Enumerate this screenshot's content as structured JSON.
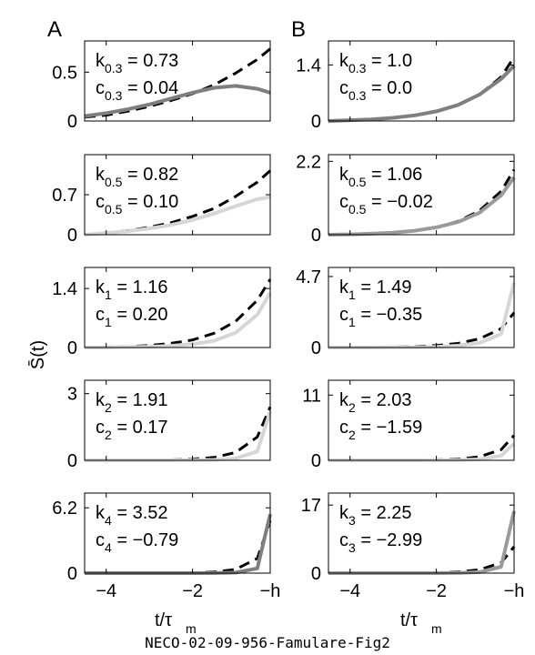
{
  "figure": {
    "caption": "NECO-02-09-956-Famulare-Fig2",
    "ylabel": "S̄(t)",
    "xlabel_main": "t/τ",
    "xlabel_sub": "m",
    "xticklabels": [
      "−4",
      "−2",
      "−h"
    ],
    "panel_labels": [
      "A",
      "B"
    ]
  },
  "colors": {
    "fit_line": "#000000",
    "data_dark": "#7f7f7f",
    "data_mid": "#9a9a9a",
    "data_light": "#d6d6d6"
  },
  "chart_data": [
    {
      "type": "line",
      "panel": "A",
      "row": 1,
      "ylim": [
        0,
        0.82
      ],
      "ytick": "0.5",
      "ytick_value": 0.5,
      "k_sub": "0.3",
      "k_value": "0.73",
      "c_sub": "0.3",
      "c_value": "0.04",
      "xlim": [
        -4.5,
        -0.2
      ],
      "xtick_values": [
        -4,
        -2,
        -0.2
      ],
      "series": [
        {
          "style": "dashed",
          "color": "#000000",
          "x": [
            -4.5,
            -4,
            -3.5,
            -3,
            -2.5,
            -2,
            -1.5,
            -1,
            -0.5,
            -0.2
          ],
          "y": [
            0.04,
            0.06,
            0.1,
            0.15,
            0.21,
            0.28,
            0.37,
            0.49,
            0.63,
            0.74
          ]
        },
        {
          "style": "solid",
          "color": "#7f7f7f",
          "x": [
            -4.5,
            -4,
            -3.5,
            -3,
            -2.5,
            -2,
            -1.5,
            -1,
            -0.5,
            -0.2
          ],
          "y": [
            0.05,
            0.08,
            0.12,
            0.17,
            0.23,
            0.29,
            0.34,
            0.36,
            0.33,
            0.29
          ]
        }
      ]
    },
    {
      "type": "line",
      "panel": "B",
      "row": 1,
      "ylim": [
        0,
        2.0
      ],
      "ytick": "1.4",
      "ytick_value": 1.4,
      "k_sub": "0.3",
      "k_value": "1.0",
      "c_sub": "0.3",
      "c_value": "0.0",
      "xlim": [
        -4.5,
        -0.2
      ],
      "xtick_values": [
        -4,
        -2,
        -0.2
      ],
      "series": [
        {
          "style": "dashed",
          "color": "#000000",
          "x": [
            -4.5,
            -4,
            -3.5,
            -3,
            -2.5,
            -2,
            -1.5,
            -1,
            -0.5,
            -0.2
          ],
          "y": [
            0.0,
            0.02,
            0.04,
            0.08,
            0.14,
            0.24,
            0.4,
            0.66,
            1.1,
            1.6
          ]
        },
        {
          "style": "solid",
          "color": "#7f7f7f",
          "x": [
            -4.5,
            -4,
            -3.5,
            -3,
            -2.5,
            -2,
            -1.5,
            -1,
            -0.5,
            -0.2
          ],
          "y": [
            0.0,
            0.02,
            0.04,
            0.08,
            0.14,
            0.24,
            0.4,
            0.66,
            1.05,
            1.38
          ]
        }
      ]
    },
    {
      "type": "line",
      "panel": "A",
      "row": 2,
      "ylim": [
        0,
        1.4
      ],
      "ytick": "0.7",
      "ytick_value": 0.7,
      "k_sub": "0.5",
      "k_value": "0.82",
      "c_sub": "0.5",
      "c_value": "0.10",
      "xlim": [
        -4.5,
        -0.2
      ],
      "xtick_values": [
        -4,
        -2,
        -0.2
      ],
      "series": [
        {
          "style": "dashed",
          "color": "#000000",
          "x": [
            -4.5,
            -4,
            -3.5,
            -3,
            -2.5,
            -2,
            -1.5,
            -1,
            -0.5,
            -0.2
          ],
          "y": [
            0.0,
            0.03,
            0.07,
            0.13,
            0.21,
            0.32,
            0.46,
            0.67,
            0.92,
            1.12
          ]
        },
        {
          "style": "solid",
          "color": "#d6d6d6",
          "x": [
            -4.5,
            -4,
            -3.5,
            -3,
            -2.5,
            -2,
            -1.5,
            -1,
            -0.5,
            -0.2
          ],
          "y": [
            0.0,
            0.03,
            0.06,
            0.11,
            0.17,
            0.26,
            0.37,
            0.5,
            0.62,
            0.66
          ]
        }
      ]
    },
    {
      "type": "line",
      "panel": "B",
      "row": 2,
      "ylim": [
        0,
        2.4
      ],
      "ytick": "2.2",
      "ytick_value": 2.2,
      "k_sub": "0.5",
      "k_value": "1.06",
      "c_sub": "0.5",
      "c_value": "−0.02",
      "xlim": [
        -4.5,
        -0.2
      ],
      "xtick_values": [
        -4,
        -2,
        -0.2
      ],
      "series": [
        {
          "style": "dashed",
          "color": "#000000",
          "x": [
            -4.5,
            -4,
            -3.5,
            -3,
            -2.5,
            -2,
            -1.5,
            -1,
            -0.5,
            -0.2
          ],
          "y": [
            0.0,
            0.01,
            0.03,
            0.06,
            0.12,
            0.22,
            0.4,
            0.72,
            1.3,
            1.95
          ]
        },
        {
          "style": "solid",
          "color": "#9a9a9a",
          "x": [
            -4.5,
            -4,
            -3.5,
            -3,
            -2.5,
            -2,
            -1.5,
            -1,
            -0.5,
            -0.2
          ],
          "y": [
            0.0,
            0.01,
            0.03,
            0.06,
            0.12,
            0.22,
            0.38,
            0.66,
            1.18,
            1.72
          ]
        }
      ]
    },
    {
      "type": "line",
      "panel": "A",
      "row": 3,
      "ylim": [
        0,
        1.9
      ],
      "ytick": "1.4",
      "ytick_value": 1.4,
      "k_sub": "1",
      "k_value": "1.16",
      "c_sub": "1",
      "c_value": "0.20",
      "xlim": [
        -4.5,
        -0.2
      ],
      "xtick_values": [
        -4,
        -2,
        -0.2
      ],
      "series": [
        {
          "style": "dashed",
          "color": "#000000",
          "x": [
            -4.5,
            -4,
            -3.5,
            -3,
            -2.5,
            -2,
            -1.5,
            -1,
            -0.5,
            -0.2
          ],
          "y": [
            0.0,
            0.01,
            0.02,
            0.05,
            0.1,
            0.18,
            0.34,
            0.62,
            1.12,
            1.62
          ]
        },
        {
          "style": "solid",
          "color": "#d6d6d6",
          "x": [
            -4.5,
            -4,
            -3.5,
            -3,
            -2.5,
            -2,
            -1.5,
            -1,
            -0.5,
            -0.2
          ],
          "y": [
            0.0,
            0.0,
            0.01,
            0.02,
            0.04,
            0.08,
            0.16,
            0.35,
            0.78,
            1.3
          ]
        }
      ]
    },
    {
      "type": "line",
      "panel": "B",
      "row": 3,
      "ylim": [
        0,
        5.3
      ],
      "ytick": "4.7",
      "ytick_value": 4.7,
      "k_sub": "1",
      "k_value": "1.49",
      "c_sub": "1",
      "c_value": "−0.35",
      "xlim": [
        -4.5,
        -0.2
      ],
      "xtick_values": [
        -4,
        -2,
        -0.2
      ],
      "series": [
        {
          "style": "dashed",
          "color": "#000000",
          "x": [
            -4.5,
            -4,
            -3.5,
            -3,
            -2.5,
            -2,
            -1.5,
            -1,
            -0.5,
            -0.2
          ],
          "y": [
            0.0,
            0.0,
            0.01,
            0.03,
            0.06,
            0.13,
            0.27,
            0.58,
            1.25,
            2.3
          ]
        },
        {
          "style": "solid",
          "color": "#d6d6d6",
          "x": [
            -4.5,
            -4,
            -3.5,
            -3,
            -2.5,
            -2,
            -1.5,
            -1,
            -0.5,
            -0.2
          ],
          "y": [
            0.0,
            0.0,
            0.0,
            0.01,
            0.02,
            0.05,
            0.12,
            0.3,
            0.9,
            4.3
          ]
        }
      ]
    },
    {
      "type": "line",
      "panel": "A",
      "row": 4,
      "ylim": [
        0,
        3.6
      ],
      "ytick": "3",
      "ytick_value": 3,
      "k_sub": "2",
      "k_value": "1.91",
      "c_sub": "2",
      "c_value": "0.17",
      "xlim": [
        -4.5,
        -0.2
      ],
      "xtick_values": [
        -4,
        -2,
        -0.2
      ],
      "series": [
        {
          "style": "dashed",
          "color": "#000000",
          "x": [
            -4.5,
            -4,
            -3.5,
            -3,
            -2.5,
            -2,
            -1.5,
            -1,
            -0.5,
            -0.2
          ],
          "y": [
            0.0,
            0.0,
            0.0,
            0.01,
            0.02,
            0.05,
            0.13,
            0.35,
            1.05,
            2.4
          ]
        },
        {
          "style": "solid",
          "color": "#d6d6d6",
          "x": [
            -4.5,
            -4,
            -3.5,
            -3,
            -2.5,
            -2,
            -1.5,
            -1,
            -0.5,
            -0.2
          ],
          "y": [
            0.0,
            0.0,
            0.0,
            0.0,
            0.0,
            0.01,
            0.02,
            0.08,
            0.4,
            2.2
          ]
        }
      ]
    },
    {
      "type": "line",
      "panel": "B",
      "row": 4,
      "ylim": [
        0,
        13.5
      ],
      "ytick": "11",
      "ytick_value": 11,
      "k_sub": "2",
      "k_value": "2.03",
      "c_sub": "2",
      "c_value": "−1.59",
      "xlim": [
        -4.5,
        -0.2
      ],
      "xtick_values": [
        -4,
        -2,
        -0.2
      ],
      "series": [
        {
          "style": "dashed",
          "color": "#000000",
          "x": [
            -4.5,
            -4,
            -3.5,
            -3,
            -2.5,
            -2,
            -1.5,
            -1,
            -0.5,
            -0.2
          ],
          "y": [
            0.0,
            0.0,
            0.0,
            0.01,
            0.03,
            0.08,
            0.22,
            0.6,
            1.8,
            4.2
          ]
        },
        {
          "style": "solid",
          "color": "#d6d6d6",
          "x": [
            -4.5,
            -4,
            -3.5,
            -3,
            -2.5,
            -2,
            -1.5,
            -1,
            -0.5,
            -0.2
          ],
          "y": [
            0.0,
            0.0,
            0.0,
            0.0,
            0.0,
            0.01,
            0.04,
            0.15,
            0.8,
            2.8
          ]
        }
      ]
    },
    {
      "type": "line",
      "panel": "A",
      "row": 5,
      "ylim": [
        0,
        7.6
      ],
      "ytick": "6.2",
      "ytick_value": 6.2,
      "k_sub": "4",
      "k_value": "3.52",
      "c_sub": "4",
      "c_value": "−0.79",
      "xlim": [
        -4.5,
        -0.2
      ],
      "xtick_values": [
        -4,
        -2,
        -0.2
      ],
      "series": [
        {
          "style": "dashed",
          "color": "#000000",
          "x": [
            -4.5,
            -4,
            -3.5,
            -3,
            -2.5,
            -2,
            -1.5,
            -1,
            -0.5,
            -0.2
          ],
          "y": [
            0.0,
            0.0,
            0.0,
            0.0,
            0.01,
            0.03,
            0.1,
            0.35,
            1.4,
            5.0
          ]
        },
        {
          "style": "solid",
          "color": "#7f7f7f",
          "x": [
            -4.5,
            -4,
            -3.5,
            -3,
            -2.5,
            -2,
            -1.5,
            -1,
            -0.5,
            -0.2
          ],
          "y": [
            0.0,
            0.0,
            0.0,
            0.0,
            0.0,
            0.0,
            0.01,
            0.05,
            0.45,
            5.6
          ]
        }
      ]
    },
    {
      "type": "line",
      "panel": "B",
      "row": 5,
      "ylim": [
        0,
        20
      ],
      "ytick": "17",
      "ytick_value": 17,
      "k_sub": "3",
      "k_value": "2.25",
      "c_sub": "3",
      "c_value": "−2.99",
      "xlim": [
        -4.5,
        -0.2
      ],
      "xtick_values": [
        -4,
        -2,
        -0.2
      ],
      "series": [
        {
          "style": "dashed",
          "color": "#000000",
          "x": [
            -4.5,
            -4,
            -3.5,
            -3,
            -2.5,
            -2,
            -1.5,
            -1,
            -0.5,
            -0.2
          ],
          "y": [
            0.0,
            0.0,
            0.0,
            0.01,
            0.03,
            0.09,
            0.28,
            0.85,
            2.6,
            6.6
          ]
        },
        {
          "style": "solid",
          "color": "#9a9a9a",
          "x": [
            -4.5,
            -4,
            -3.5,
            -3,
            -2.5,
            -2,
            -1.5,
            -1,
            -0.5,
            -0.2
          ],
          "y": [
            0.0,
            0.0,
            0.0,
            0.0,
            0.0,
            0.01,
            0.05,
            0.25,
            1.6,
            15.5
          ]
        }
      ]
    }
  ]
}
